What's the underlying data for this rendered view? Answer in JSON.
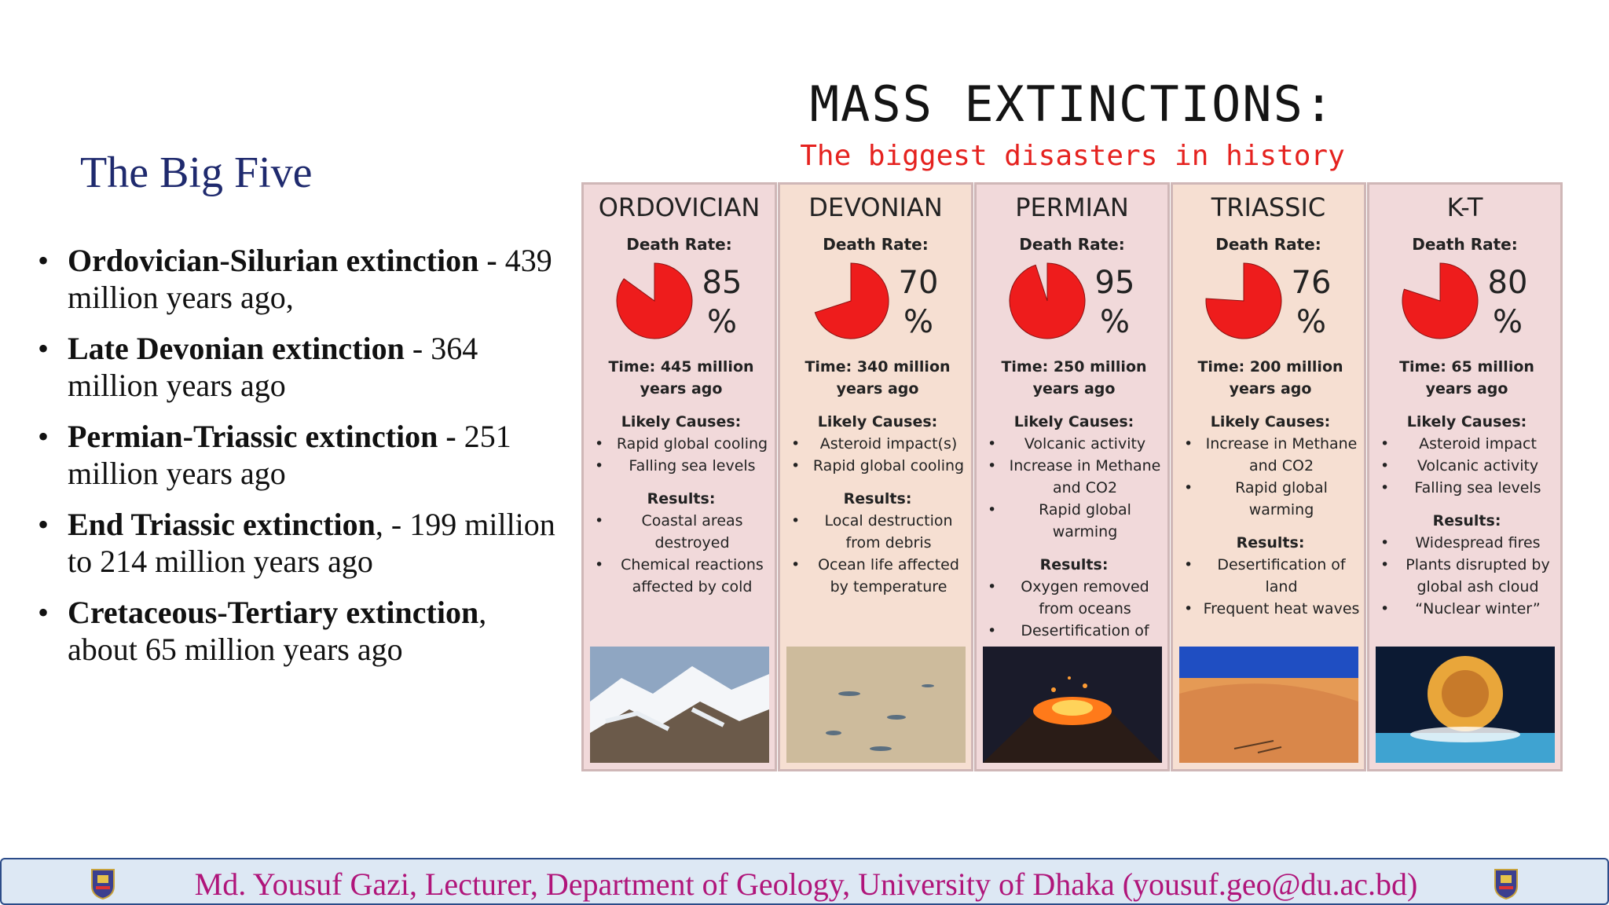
{
  "slide": {
    "title": "The Big Five",
    "bullets": [
      {
        "bold": "Ordovician-Silurian extinction -",
        "text": " 439 million years ago,"
      },
      {
        "bold": "Late Devonian extinction",
        "text": " - 364 million years ago"
      },
      {
        "bold": "Permian-Triassic extinction -",
        "text": " 251 million years ago"
      },
      {
        "bold": "End Triassic extinction",
        "text": ", - 199 million to 214 million years ago"
      },
      {
        "bold": "Cretaceous-Tertiary extinction",
        "text": ", about 65 million years ago"
      }
    ],
    "bullet_glyph": "•"
  },
  "infographic": {
    "title": "MASS EXTINCTIONS:",
    "subtitle": "The biggest disasters in history",
    "death_rate_label": "Death Rate:",
    "causes_label": "Likely Causes:",
    "results_label": "Results:",
    "pie_color": "#ee1c1c",
    "panels": [
      {
        "name": "ORDOVICIAN",
        "death_rate": 85,
        "pct_num": "85",
        "pct_sign": "%",
        "time": "Time: 445 million years ago",
        "causes": [
          "Rapid global cooling",
          "Falling sea levels"
        ],
        "results": [
          "Coastal areas destroyed",
          "Chemical reactions affected by cold"
        ],
        "photo": "snowy-mountains"
      },
      {
        "name": "DEVONIAN",
        "death_rate": 70,
        "pct_num": "70",
        "pct_sign": "%",
        "time": "Time: 340 million years ago",
        "causes": [
          "Asteroid impact(s)",
          "Rapid global cooling"
        ],
        "results": [
          "Local destruction from debris",
          "Ocean life affected by temperature"
        ],
        "photo": "sandy-seafloor"
      },
      {
        "name": "PERMIAN",
        "death_rate": 95,
        "pct_num": "95",
        "pct_sign": "%",
        "time": "Time: 250 million years ago",
        "causes": [
          "Volcanic activity",
          "Increase in Methane and CO2",
          "Rapid global warming"
        ],
        "results": [
          "Oxygen removed from oceans",
          "Desertification of land"
        ],
        "photo": "erupting-volcano"
      },
      {
        "name": "TRIASSIC",
        "death_rate": 76,
        "pct_num": "76",
        "pct_sign": "%",
        "time": "Time: 200 million years ago",
        "causes": [
          "Increase in Methane and CO2",
          "Rapid global warming"
        ],
        "results": [
          "Desertification of land",
          "Frequent heat waves"
        ],
        "photo": "desert-dunes"
      },
      {
        "name": "K-T",
        "death_rate": 80,
        "pct_num": "80",
        "pct_sign": "%",
        "time": "Time: 65 million years ago",
        "causes": [
          "Asteroid impact",
          "Volcanic activity",
          "Falling sea levels"
        ],
        "results": [
          "Widespread fires",
          "Plants disrupted by global ash cloud",
          "“Nuclear winter”"
        ],
        "photo": "asteroid-impact"
      }
    ]
  },
  "footer": {
    "text": "Md. Yousuf Gazi, Lecturer, Department of Geology, University of Dhaka (yousuf.geo@du.ac.bd)",
    "color": "#b0157a"
  }
}
